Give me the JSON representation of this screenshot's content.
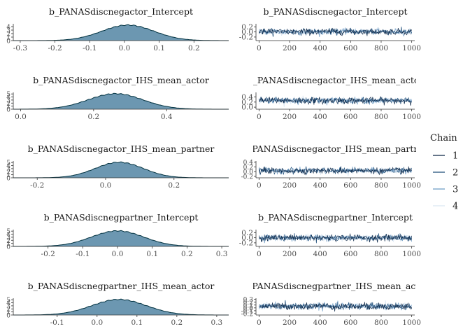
{
  "chart_data": [
    {
      "type": "area",
      "title": "b_PANASdiscnegactor_Intercept",
      "xlim": [
        -0.32,
        0.3
      ],
      "x_ticks": [
        -0.3,
        -0.2,
        -0.1,
        0.0,
        0.1,
        0.2
      ],
      "x_tick_labels": [
        "-0.3",
        "-0.2",
        "-0.1",
        "0.0",
        "0.1",
        "0.2"
      ],
      "y_ticks": [
        0,
        1,
        2,
        3,
        4
      ],
      "y_tick_labels": [
        "0",
        "1",
        "2",
        "3",
        "4"
      ],
      "ylim": [
        0,
        4.8
      ],
      "density_mean": 0.01,
      "density_sd": 0.075
    },
    {
      "type": "line",
      "title": "b_PANASdiscnegactor_Intercept",
      "xlim": [
        -20,
        1020
      ],
      "x_ticks": [
        0,
        200,
        400,
        600,
        800,
        1000
      ],
      "x_tick_labels": [
        "0",
        "200",
        "400",
        "600",
        "800",
        "1000"
      ],
      "y_ticks": [
        -0.2,
        0.0,
        0.2
      ],
      "y_tick_labels": [
        "-0.2",
        "0.0",
        "0.2"
      ],
      "ylim": [
        -0.34,
        0.32
      ],
      "trace_mean": 0.01,
      "trace_spread": 0.19
    },
    {
      "type": "area",
      "title": "b_PANASdiscnegactor_IHS_mean_actor",
      "xlim": [
        -0.02,
        0.57
      ],
      "x_ticks": [
        0.0,
        0.2,
        0.4
      ],
      "x_tick_labels": [
        "0.0",
        "0.2",
        "0.4"
      ],
      "y_ticks": [
        0,
        1,
        2,
        3,
        4,
        5
      ],
      "y_tick_labels": [
        "0",
        "1",
        "2",
        "3",
        "4",
        "5"
      ],
      "ylim": [
        0,
        5.5
      ],
      "density_mean": 0.26,
      "density_sd": 0.075
    },
    {
      "type": "line",
      "title": "b_PANASdiscnegactor_IHS_mean_actor",
      "xlim": [
        -20,
        1020
      ],
      "x_ticks": [
        0,
        200,
        400,
        600,
        800,
        1000
      ],
      "x_tick_labels": [
        "0",
        "200",
        "400",
        "600",
        "800",
        "1000"
      ],
      "y_ticks": [
        0.0,
        0.2,
        0.4
      ],
      "y_tick_labels": [
        "0.0",
        "0.2",
        "0.4"
      ],
      "ylim": [
        -0.08,
        0.58
      ],
      "trace_mean": 0.26,
      "trace_spread": 0.2
    },
    {
      "type": "area",
      "title": "b_PANASdiscnegactor_IHS_mean_partner",
      "xlim": [
        -0.27,
        0.36
      ],
      "x_ticks": [
        -0.2,
        0.0,
        0.2
      ],
      "x_tick_labels": [
        "-0.2",
        "0.0",
        "0.2"
      ],
      "y_ticks": [
        0,
        1,
        2,
        3,
        4,
        5
      ],
      "y_tick_labels": [
        "0",
        "1",
        "2",
        "3",
        "4",
        "5"
      ],
      "ylim": [
        0,
        5.5
      ],
      "density_mean": 0.04,
      "density_sd": 0.07
    },
    {
      "type": "line",
      "title": "b_PANASdiscnegactor_IHS_mean_partner",
      "xlim": [
        -20,
        1020
      ],
      "x_ticks": [
        0,
        200,
        400,
        600,
        800,
        1000
      ],
      "x_tick_labels": [
        "0",
        "200",
        "400",
        "600",
        "800",
        "1000"
      ],
      "y_ticks": [
        -0.2,
        0.0,
        0.2,
        0.4
      ],
      "y_tick_labels": [
        "-0.2",
        "0.0",
        "0.2",
        "0.4"
      ],
      "ylim": [
        -0.26,
        0.45
      ],
      "trace_mean": 0.04,
      "trace_spread": 0.2
    },
    {
      "type": "area",
      "title": "b_PANASdiscnegpartner_Intercept",
      "xlim": [
        -0.3,
        0.32
      ],
      "x_ticks": [
        -0.2,
        -0.1,
        0.0,
        0.1,
        0.2,
        0.3
      ],
      "x_tick_labels": [
        "-0.2",
        "-0.1",
        "0.0",
        "0.1",
        "0.2",
        "0.3"
      ],
      "y_ticks": [
        0,
        1,
        2,
        3,
        4,
        5
      ],
      "y_tick_labels": [
        "0",
        "1",
        "2",
        "3",
        "4",
        "5"
      ],
      "ylim": [
        0,
        5.5
      ],
      "density_mean": 0.0,
      "density_sd": 0.075
    },
    {
      "type": "line",
      "title": "b_PANASdiscnegpartner_Intercept",
      "xlim": [
        -20,
        1020
      ],
      "x_ticks": [
        0,
        200,
        400,
        600,
        800,
        1000
      ],
      "x_tick_labels": [
        "0",
        "200",
        "400",
        "600",
        "800",
        "1000"
      ],
      "y_ticks": [
        -0.2,
        0.0,
        0.2
      ],
      "y_tick_labels": [
        "-0.2",
        "0.0",
        "0.2"
      ],
      "ylim": [
        -0.34,
        0.32
      ],
      "trace_mean": 0.0,
      "trace_spread": 0.2
    },
    {
      "type": "area",
      "title": "b_PANASdiscnegpartner_IHS_mean_actor",
      "xlim": [
        -0.21,
        0.33
      ],
      "x_ticks": [
        -0.1,
        0.0,
        0.1,
        0.2,
        0.3
      ],
      "x_tick_labels": [
        "-0.1",
        "0.0",
        "0.1",
        "0.2",
        "0.3"
      ],
      "y_ticks": [
        0,
        1,
        2,
        3,
        4,
        5
      ],
      "y_tick_labels": [
        "0",
        "1",
        "2",
        "3",
        "4",
        "5"
      ],
      "ylim": [
        0,
        5.5
      ],
      "density_mean": 0.055,
      "density_sd": 0.068
    },
    {
      "type": "line",
      "title": "b_PANASdiscnegpartner_IHS_mean_actor",
      "xlim": [
        -20,
        1020
      ],
      "x_ticks": [
        0,
        200,
        400,
        600,
        800,
        1000
      ],
      "x_tick_labels": [
        "0",
        "200",
        "400",
        "600",
        "800",
        "1000"
      ],
      "y_ticks": [
        -0.2,
        -0.1,
        0.0,
        0.1,
        0.2,
        0.3
      ],
      "y_tick_labels": [
        "-0.2",
        "-0.1",
        "0.0",
        "0.1",
        "0.2",
        "0.3"
      ],
      "ylim": [
        -0.25,
        0.34
      ],
      "trace_mean": 0.055,
      "trace_spread": 0.19
    }
  ],
  "legend": {
    "title": "Chain",
    "placement": "right",
    "entries": [
      {
        "label": "1",
        "color": "#0b2545"
      },
      {
        "label": "2",
        "color": "#1f4e79"
      },
      {
        "label": "3",
        "color": "#6b9ac4"
      },
      {
        "label": "4",
        "color": "#d9e6f2"
      }
    ]
  },
  "colors": {
    "density_fill": "#6c97b1",
    "density_line": "#01313f",
    "axis": "#333333"
  }
}
